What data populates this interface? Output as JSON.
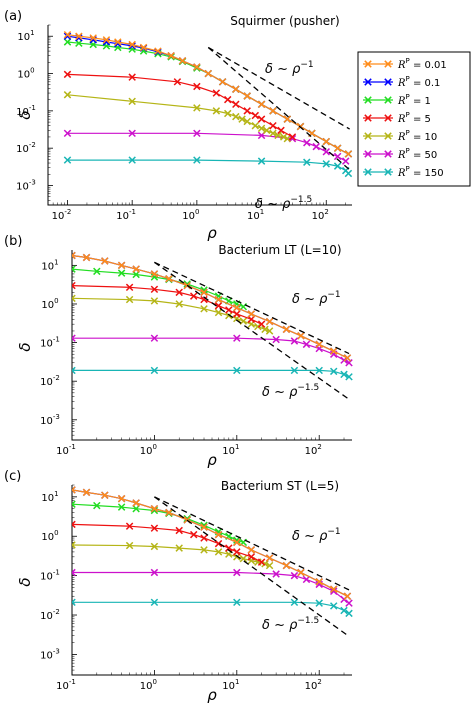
{
  "chart_data": [
    {
      "type": "line",
      "panel_label": "(a)",
      "title": "Squirmer (pusher)",
      "xlabel": "ρ",
      "ylabel": "δ",
      "xscale": "log",
      "yscale": "log",
      "xlim": [
        0.005,
        250
      ],
      "ylim": [
        0.0003,
        20
      ],
      "xticks": [
        0.01,
        0.1,
        1,
        10,
        100
      ],
      "xtick_exps": [
        "-2",
        "-1",
        "0",
        "1",
        "2"
      ],
      "yticks": [
        0.001,
        0.01,
        0.1,
        1,
        10
      ],
      "ytick_exps": [
        "-3",
        "-2",
        "-1",
        "0",
        "1"
      ],
      "guides": [
        {
          "label": "δ ~ ρ",
          "exp": "−1",
          "x": [
            1.5,
            230
          ],
          "y": [
            5.0,
            0.0326
          ]
        },
        {
          "label": "δ ~ ρ",
          "exp": "−1.5",
          "x": [
            1.5,
            230
          ],
          "y": [
            5.0,
            0.00263
          ]
        }
      ],
      "series": [
        {
          "name": "0.01",
          "color": "#ff8c1a",
          "x": [
            0.01,
            0.015,
            0.025,
            0.04,
            0.06,
            0.1,
            0.15,
            0.25,
            0.4,
            0.6,
            1,
            1.5,
            2.5,
            4,
            6,
            10,
            15,
            25,
            40,
            60,
            100,
            150,
            220
          ],
          "y": [
            11,
            10,
            9,
            8,
            7,
            6,
            5,
            4,
            3,
            2.2,
            1.5,
            1,
            0.6,
            0.38,
            0.25,
            0.15,
            0.1,
            0.06,
            0.038,
            0.025,
            0.015,
            0.01,
            0.007
          ]
        },
        {
          "name": "0.1",
          "color": "#0000ff",
          "x": [
            0.01,
            0.015,
            0.025,
            0.04,
            0.06,
            0.1,
            0.15,
            0.25,
            0.4,
            0.6,
            1,
            1.5,
            2.5,
            4,
            6,
            10,
            15,
            25,
            40,
            60,
            100,
            150,
            220
          ],
          "y": [
            10,
            9,
            8,
            7,
            6.3,
            5.5,
            4.8,
            3.8,
            3,
            2.2,
            1.5,
            1,
            0.6,
            0.38,
            0.25,
            0.15,
            0.1,
            0.06,
            0.038,
            0.025,
            0.015,
            0.01,
            0.007
          ]
        },
        {
          "name": "1",
          "color": "#22dd22",
          "x": [
            0.01,
            0.015,
            0.025,
            0.04,
            0.06,
            0.1,
            0.15,
            0.25,
            0.4,
            0.6,
            1,
            1.5,
            2.5,
            4,
            6,
            10,
            15,
            25,
            40,
            60,
            100,
            150,
            220
          ],
          "y": [
            7,
            6.5,
            6,
            5.5,
            5,
            4.5,
            4,
            3.4,
            2.8,
            2.1,
            1.4,
            1,
            0.6,
            0.38,
            0.25,
            0.15,
            0.1,
            0.06,
            0.038,
            0.025,
            0.015,
            0.01,
            0.007
          ]
        },
        {
          "name": "5",
          "color": "#ee1111",
          "x": [
            0.01,
            0.1,
            0.5,
            1,
            2,
            3,
            4,
            6,
            8,
            10,
            15,
            20,
            30
          ],
          "y": [
            0.95,
            0.8,
            0.6,
            0.45,
            0.3,
            0.2,
            0.15,
            0.1,
            0.075,
            0.06,
            0.04,
            0.03,
            0.02
          ]
        },
        {
          "name": "10",
          "color": "#b5b517",
          "x": [
            0.01,
            0.1,
            1,
            2,
            3,
            4,
            5,
            6,
            8,
            10,
            12,
            15,
            18,
            22,
            25
          ],
          "y": [
            0.27,
            0.18,
            0.12,
            0.1,
            0.085,
            0.07,
            0.06,
            0.052,
            0.04,
            0.034,
            0.03,
            0.025,
            0.022,
            0.02,
            0.018
          ]
        },
        {
          "name": "50",
          "color": "#cc11cc",
          "x": [
            0.01,
            0.1,
            1,
            10,
            30,
            50,
            70,
            100,
            150,
            200
          ],
          "y": [
            0.025,
            0.025,
            0.025,
            0.022,
            0.018,
            0.014,
            0.011,
            0.008,
            0.006,
            0.0045
          ]
        },
        {
          "name": "150",
          "color": "#18b5b5",
          "x": [
            0.01,
            0.1,
            1,
            10,
            50,
            100,
            150,
            200,
            220
          ],
          "y": [
            0.0048,
            0.0048,
            0.0048,
            0.0045,
            0.0042,
            0.0038,
            0.0033,
            0.0025,
            0.0021
          ]
        }
      ],
      "legend": {
        "placement": "right",
        "entries": [
          "R^P = 0.01",
          "R^P = 0.1",
          "R^P = 1",
          "R^P = 5",
          "R^P = 10",
          "R^P = 50",
          "R^P = 150"
        ],
        "label_prefix": "R",
        "label_sup": "P",
        "label_eq": " = "
      }
    },
    {
      "type": "line",
      "panel_label": "(b)",
      "title": "Bacterium LT (L=10)",
      "xlabel": "ρ",
      "ylabel": "δ",
      "xscale": "log",
      "yscale": "log",
      "xlim": [
        0.1,
        250
      ],
      "ylim": [
        0.0003,
        25
      ],
      "xticks": [
        0.1,
        1,
        10,
        100
      ],
      "xtick_exps": [
        "-1",
        "0",
        "1",
        "2"
      ],
      "yticks": [
        0.001,
        0.01,
        0.1,
        1,
        10
      ],
      "ytick_exps": [
        "-3",
        "-2",
        "-1",
        "0",
        "1"
      ],
      "guides": [
        {
          "label": "δ ~ ρ",
          "exp": "−1",
          "x": [
            1,
            230
          ],
          "y": [
            12,
            0.052
          ]
        },
        {
          "label": "δ ~ ρ",
          "exp": "−1.5",
          "x": [
            1,
            230
          ],
          "y": [
            12,
            0.0034
          ]
        }
      ],
      "series": [
        {
          "name": "0.01",
          "color": "#ff8c1a",
          "x": [
            0.1,
            0.15,
            0.25,
            0.4,
            0.6,
            1,
            1.5,
            2.5,
            4,
            6,
            10,
            15,
            25,
            40,
            60,
            100,
            150,
            220
          ],
          "y": [
            18,
            16,
            13,
            10,
            8,
            6,
            4.5,
            3,
            2,
            1.3,
            0.8,
            0.55,
            0.35,
            0.22,
            0.15,
            0.09,
            0.06,
            0.04
          ]
        },
        {
          "name": "0.1",
          "color": "#0000ff",
          "x": [
            0.1,
            0.15,
            0.25,
            0.4,
            0.6,
            1,
            1.5,
            2.5,
            4,
            6,
            10,
            15,
            25,
            40,
            60,
            100,
            150,
            220
          ],
          "y": [
            18,
            16,
            13,
            10,
            8,
            6,
            4.5,
            3,
            2,
            1.3,
            0.8,
            0.55,
            0.35,
            0.22,
            0.15,
            0.09,
            0.06,
            0.04
          ]
        },
        {
          "name": "1",
          "color": "#22dd22",
          "x": [
            0.1,
            0.2,
            0.4,
            0.6,
            1,
            1.5,
            2.5,
            4,
            6,
            8,
            10,
            12
          ],
          "y": [
            8,
            7,
            6.3,
            5.8,
            5,
            4.3,
            3.3,
            2.3,
            1.6,
            1.2,
            1,
            0.85
          ]
        },
        {
          "name": "5",
          "color": "#ee1111",
          "x": [
            0.1,
            0.5,
            1,
            2,
            3,
            4,
            6,
            8,
            10,
            15,
            20
          ],
          "y": [
            3,
            2.7,
            2.4,
            2,
            1.6,
            1.3,
            0.9,
            0.7,
            0.55,
            0.4,
            0.3
          ]
        },
        {
          "name": "10",
          "color": "#b5b517",
          "x": [
            0.1,
            0.5,
            1,
            2,
            4,
            6,
            8,
            10,
            12,
            15,
            18,
            22,
            25
          ],
          "y": [
            1.4,
            1.3,
            1.2,
            1,
            0.75,
            0.6,
            0.5,
            0.42,
            0.36,
            0.3,
            0.26,
            0.22,
            0.2
          ]
        },
        {
          "name": "50",
          "color": "#cc11cc",
          "x": [
            0.1,
            1,
            10,
            30,
            50,
            70,
            100,
            150,
            200,
            230
          ],
          "y": [
            0.13,
            0.13,
            0.13,
            0.12,
            0.11,
            0.09,
            0.07,
            0.05,
            0.035,
            0.03
          ]
        },
        {
          "name": "150",
          "color": "#18b5b5",
          "x": [
            0.1,
            1,
            10,
            50,
            100,
            150,
            200,
            230
          ],
          "y": [
            0.019,
            0.019,
            0.019,
            0.019,
            0.019,
            0.018,
            0.015,
            0.013
          ]
        }
      ]
    },
    {
      "type": "line",
      "panel_label": "(c)",
      "title": "Bacterium ST (L=5)",
      "xlabel": "ρ",
      "ylabel": "δ",
      "xscale": "log",
      "yscale": "log",
      "xlim": [
        0.1,
        250
      ],
      "ylim": [
        0.0003,
        20
      ],
      "xticks": [
        0.1,
        1,
        10,
        100
      ],
      "xtick_exps": [
        "-1",
        "0",
        "1",
        "2"
      ],
      "yticks": [
        0.001,
        0.01,
        0.1,
        1,
        10
      ],
      "ytick_exps": [
        "-3",
        "-2",
        "-1",
        "0",
        "1"
      ],
      "guides": [
        {
          "label": "δ ~ ρ",
          "exp": "−1",
          "x": [
            1,
            230
          ],
          "y": [
            10,
            0.0435
          ]
        },
        {
          "label": "δ ~ ρ",
          "exp": "−1.5",
          "x": [
            1,
            230
          ],
          "y": [
            10,
            0.00287
          ]
        }
      ],
      "series": [
        {
          "name": "0.01",
          "color": "#ff8c1a",
          "x": [
            0.1,
            0.15,
            0.25,
            0.4,
            0.6,
            1,
            1.5,
            2.5,
            4,
            6,
            10,
            15,
            25,
            40,
            60,
            100,
            150,
            220
          ],
          "y": [
            15,
            13,
            11,
            9,
            7,
            5,
            4,
            2.6,
            1.7,
            1.1,
            0.7,
            0.45,
            0.28,
            0.18,
            0.12,
            0.07,
            0.045,
            0.03
          ]
        },
        {
          "name": "0.1",
          "color": "#0000ff",
          "x": [
            0.1,
            0.15,
            0.25,
            0.4,
            0.6,
            1,
            1.5,
            2.5,
            4,
            6,
            10,
            15,
            25,
            40,
            60,
            100,
            150,
            220
          ],
          "y": [
            15,
            13,
            11,
            9,
            7,
            5,
            4,
            2.6,
            1.7,
            1.1,
            0.7,
            0.45,
            0.28,
            0.18,
            0.12,
            0.07,
            0.045,
            0.03
          ]
        },
        {
          "name": "1",
          "color": "#22dd22",
          "x": [
            0.1,
            0.2,
            0.4,
            0.6,
            1,
            1.5,
            2.5,
            4,
            6,
            8,
            10,
            12
          ],
          "y": [
            6.5,
            6,
            5.5,
            5,
            4.5,
            3.8,
            2.8,
            1.9,
            1.3,
            1,
            0.8,
            0.7
          ]
        },
        {
          "name": "5",
          "color": "#ee1111",
          "x": [
            0.1,
            0.5,
            1,
            2,
            3,
            4,
            6,
            8,
            10,
            15,
            20
          ],
          "y": [
            2,
            1.8,
            1.6,
            1.4,
            1.1,
            0.9,
            0.65,
            0.5,
            0.4,
            0.3,
            0.22
          ]
        },
        {
          "name": "10",
          "color": "#b5b517",
          "x": [
            0.1,
            0.5,
            1,
            2,
            4,
            6,
            8,
            10,
            12,
            15,
            18,
            22,
            25
          ],
          "y": [
            0.6,
            0.58,
            0.55,
            0.5,
            0.45,
            0.4,
            0.35,
            0.3,
            0.27,
            0.24,
            0.22,
            0.2,
            0.18
          ]
        },
        {
          "name": "50",
          "color": "#cc11cc",
          "x": [
            0.1,
            1,
            10,
            30,
            50,
            70,
            100,
            150,
            200,
            230
          ],
          "y": [
            0.12,
            0.12,
            0.12,
            0.11,
            0.1,
            0.08,
            0.06,
            0.04,
            0.025,
            0.02
          ]
        },
        {
          "name": "150",
          "color": "#18b5b5",
          "x": [
            0.1,
            1,
            10,
            50,
            100,
            150,
            200,
            230
          ],
          "y": [
            0.021,
            0.021,
            0.021,
            0.021,
            0.02,
            0.017,
            0.013,
            0.011
          ]
        }
      ]
    }
  ]
}
